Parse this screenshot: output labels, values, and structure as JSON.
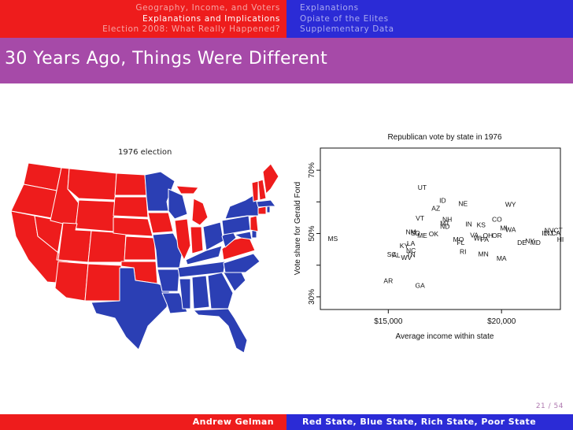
{
  "nav": {
    "left": [
      {
        "label": "Geography, Income, and Voters",
        "active": false
      },
      {
        "label": "Explanations and Implications",
        "active": true
      },
      {
        "label": "Election 2008: What Really Happened?",
        "active": false
      }
    ],
    "right": [
      {
        "label": "Explanations",
        "active": false
      },
      {
        "label": "Opiate of the Elites",
        "active": false
      },
      {
        "label": "Supplementary Data",
        "active": false
      }
    ]
  },
  "slide": {
    "title": "30 Years Ago, Things Were Different"
  },
  "footer": {
    "author": "Andrew Gelman",
    "talk_title": "Red State, Blue State, Rich State, Poor State",
    "page": "21 / 54"
  },
  "map": {
    "title": "1976 election",
    "colors": {
      "republican": "#ee1c1c",
      "democrat": "#2b3fb4",
      "border": "#ffffff"
    }
  },
  "chart_data": {
    "type": "scatter",
    "title": "Republican vote by state in 1976",
    "xlabel": "Average income within state",
    "ylabel": "Vote share for Gerald Ford",
    "xlim": [
      12000,
      22600
    ],
    "ylim": [
      26,
      77
    ],
    "xticks": [
      {
        "value": 15000,
        "label": "$15,000"
      },
      {
        "value": 20000,
        "label": "$20,000"
      }
    ],
    "yticks": [
      {
        "value": 30,
        "label": "30%"
      },
      {
        "value": 50,
        "label": "50%"
      },
      {
        "value": 70,
        "label": "70%"
      }
    ],
    "yminor": [
      40,
      60
    ],
    "points": [
      {
        "label": "UT",
        "x": 16500,
        "y": 64.5
      },
      {
        "label": "ID",
        "x": 17400,
        "y": 60.5
      },
      {
        "label": "NE",
        "x": 18300,
        "y": 59.5
      },
      {
        "label": "WY",
        "x": 20400,
        "y": 59.2
      },
      {
        "label": "AZ",
        "x": 17100,
        "y": 58.0
      },
      {
        "label": "VT",
        "x": 16400,
        "y": 54.8
      },
      {
        "label": "NH",
        "x": 17600,
        "y": 54.5
      },
      {
        "label": "CO",
        "x": 19800,
        "y": 54.5
      },
      {
        "label": "MT",
        "x": 17500,
        "y": 53.2
      },
      {
        "label": "ND",
        "x": 17500,
        "y": 52.2
      },
      {
        "label": "IN",
        "x": 18550,
        "y": 53.0
      },
      {
        "label": "KS",
        "x": 19100,
        "y": 52.7
      },
      {
        "label": "MI",
        "x": 20100,
        "y": 51.7
      },
      {
        "label": "WA",
        "x": 20400,
        "y": 51.2
      },
      {
        "label": "NV",
        "x": 22100,
        "y": 51.0
      },
      {
        "label": "CT",
        "x": 22500,
        "y": 51.0
      },
      {
        "label": "IL",
        "x": 21900,
        "y": 50.1
      },
      {
        "label": "NJ",
        "x": 22100,
        "y": 50.1
      },
      {
        "label": "CA",
        "x": 22400,
        "y": 50.1
      },
      {
        "label": "NM",
        "x": 16000,
        "y": 50.5
      },
      {
        "label": "SD",
        "x": 16200,
        "y": 50.1
      },
      {
        "label": "ME",
        "x": 16500,
        "y": 49.4
      },
      {
        "label": "OK",
        "x": 17000,
        "y": 49.9
      },
      {
        "label": "VA",
        "x": 18800,
        "y": 49.5
      },
      {
        "label": "OH",
        "x": 19400,
        "y": 49.4
      },
      {
        "label": "OR",
        "x": 19800,
        "y": 49.4
      },
      {
        "label": "WI",
        "x": 18950,
        "y": 48.5
      },
      {
        "label": "PA",
        "x": 19250,
        "y": 48.2
      },
      {
        "label": "MO",
        "x": 18100,
        "y": 48.2
      },
      {
        "label": "DE",
        "x": 20900,
        "y": 47.2
      },
      {
        "label": "NY",
        "x": 21250,
        "y": 47.6
      },
      {
        "label": "MD",
        "x": 21500,
        "y": 47.1
      },
      {
        "label": "HI",
        "x": 22600,
        "y": 48.1
      },
      {
        "label": "MS",
        "x": 12550,
        "y": 48.4
      },
      {
        "label": "FL",
        "x": 18200,
        "y": 47.2
      },
      {
        "label": "KY",
        "x": 15700,
        "y": 46.1
      },
      {
        "label": "LA",
        "x": 16000,
        "y": 46.9
      },
      {
        "label": "NC",
        "x": 16000,
        "y": 44.6
      },
      {
        "label": "RI",
        "x": 18300,
        "y": 44.3
      },
      {
        "label": "MN",
        "x": 19200,
        "y": 43.5
      },
      {
        "label": "MA",
        "x": 20000,
        "y": 42.2
      },
      {
        "label": "SC",
        "x": 15150,
        "y": 43.4
      },
      {
        "label": "AL",
        "x": 15350,
        "y": 43.2
      },
      {
        "label": "TN",
        "x": 16000,
        "y": 43.3
      },
      {
        "label": "WV",
        "x": 15800,
        "y": 42.4
      },
      {
        "label": "AR",
        "x": 15000,
        "y": 35.1
      },
      {
        "label": "GA",
        "x": 16400,
        "y": 33.6
      }
    ]
  }
}
